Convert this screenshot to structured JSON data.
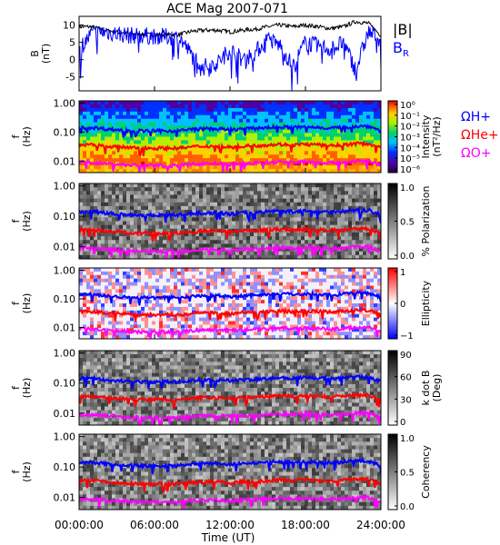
{
  "title": "ACE Mag 2007-071",
  "colors": {
    "black_line": "#000000",
    "blue": "#0000ff",
    "red": "#ff0000",
    "magenta": "#ff00ff"
  },
  "chart_data": [
    {
      "type": "line",
      "panel": "magnetic-field",
      "ylabel_lines": [
        "B",
        "(nT)"
      ],
      "yticks": [
        "10",
        "5",
        "0",
        "-5"
      ],
      "ylim": [
        -9,
        12.5
      ],
      "xlim": [
        0,
        24
      ],
      "legend": [
        "|B|",
        "B_R"
      ],
      "legend_placement": "right",
      "series": [
        {
          "name": "|B|",
          "color": "#000000",
          "x": [
            0,
            1,
            2,
            3,
            4,
            5,
            6,
            7,
            8,
            9,
            10,
            11,
            12,
            13,
            14,
            15,
            16,
            17,
            18,
            19,
            20,
            21,
            22,
            23,
            24
          ],
          "values": [
            9.5,
            9.5,
            8.5,
            8,
            7.5,
            7.3,
            7.2,
            7.2,
            7.3,
            8.2,
            8.5,
            8.5,
            8,
            8.5,
            8.8,
            9.5,
            10,
            9.5,
            10,
            9.5,
            9,
            9.5,
            11,
            10.5,
            7
          ]
        },
        {
          "name": "B_R",
          "color": "#0000ff",
          "x": [
            0,
            1,
            2,
            3,
            4,
            5,
            6,
            7,
            8,
            9,
            10,
            11,
            12,
            13,
            14,
            15,
            16,
            17,
            18,
            19,
            20,
            21,
            22,
            23,
            24
          ],
          "values": [
            3,
            7.5,
            8,
            7.5,
            7,
            6.9,
            6.8,
            6.6,
            6.3,
            1,
            -2,
            -1,
            3,
            0,
            2,
            6,
            4,
            -2,
            5,
            4,
            3,
            5,
            -3,
            8,
            6
          ]
        }
      ]
    },
    {
      "type": "heatmap",
      "panel": "power-spectrum",
      "ylabel_lines": [
        "f",
        "(Hz)"
      ],
      "yscale": "log",
      "ylim": [
        0.004,
        1.2
      ],
      "yticks": [
        "1.00",
        "0.10",
        "0.01"
      ],
      "colorbar_label_lines": [
        "Intensity",
        "(nT²/Hz)"
      ],
      "colorbar_ticks": [
        "10⁰",
        "10⁻¹",
        "10⁻²",
        "10⁻³",
        "10⁻⁴",
        "10⁻⁵",
        "10⁻⁶"
      ],
      "colorbar_scale": "rainbow",
      "overlay_labels": [
        {
          "text": "ΩH+",
          "color": "#0000ff"
        },
        {
          "text": "ΩHe+",
          "color": "#ff0000"
        },
        {
          "text": "ΩO+",
          "color": "#ff00ff"
        }
      ]
    },
    {
      "type": "heatmap",
      "panel": "polarization",
      "ylabel_lines": [
        "f",
        "(Hz)"
      ],
      "yscale": "log",
      "ylim": [
        0.004,
        1.2
      ],
      "yticks": [
        "1.00",
        "0.10",
        "0.01"
      ],
      "colorbar_label_lines": [
        "% Polarization"
      ],
      "colorbar_ticks": [
        "1.0",
        "0.5",
        "0.0"
      ],
      "colorbar_scale": "grayscale"
    },
    {
      "type": "heatmap",
      "panel": "ellipticity",
      "ylabel_lines": [
        "f",
        "(Hz)"
      ],
      "yscale": "log",
      "ylim": [
        0.004,
        1.2
      ],
      "yticks": [
        "1.00",
        "0.10",
        "0.01"
      ],
      "colorbar_label_lines": [
        "Ellipticity"
      ],
      "colorbar_ticks": [
        "1",
        "0",
        "−1"
      ],
      "colorbar_scale": "blue-white-red"
    },
    {
      "type": "heatmap",
      "panel": "k-dot-b",
      "ylabel_lines": [
        "f",
        "(Hz)"
      ],
      "yscale": "log",
      "ylim": [
        0.004,
        1.2
      ],
      "yticks": [
        "1.00",
        "0.10",
        "0.01"
      ],
      "colorbar_label_lines": [
        "k dot B",
        "(Deg)"
      ],
      "colorbar_ticks": [
        "90",
        "60",
        "30",
        "0"
      ],
      "colorbar_scale": "grayscale"
    },
    {
      "type": "heatmap",
      "panel": "coherency",
      "ylabel_lines": [
        "f",
        "(Hz)"
      ],
      "yscale": "log",
      "ylim": [
        0.004,
        1.2
      ],
      "yticks": [
        "1.00",
        "0.10",
        "0.01"
      ],
      "colorbar_label_lines": [
        "Coherency"
      ],
      "colorbar_ticks": [
        "1.0",
        "0.5",
        "0.0"
      ],
      "colorbar_scale": "grayscale"
    }
  ],
  "gyrofrequency_lines": [
    {
      "name": "ΩH+",
      "color": "#0000ff",
      "x": [
        0,
        1,
        2,
        3,
        4,
        5,
        6,
        7,
        8,
        9,
        10,
        11,
        12,
        13,
        14,
        15,
        16,
        17,
        18,
        19,
        20,
        21,
        22,
        23,
        24
      ],
      "values": [
        0.14,
        0.145,
        0.13,
        0.12,
        0.115,
        0.11,
        0.11,
        0.11,
        0.112,
        0.125,
        0.13,
        0.13,
        0.12,
        0.13,
        0.135,
        0.145,
        0.15,
        0.145,
        0.15,
        0.145,
        0.14,
        0.145,
        0.16,
        0.16,
        0.11
      ]
    },
    {
      "name": "ΩHe+",
      "color": "#ff0000",
      "x": [
        0,
        1,
        2,
        3,
        4,
        5,
        6,
        7,
        8,
        9,
        10,
        11,
        12,
        13,
        14,
        15,
        16,
        17,
        18,
        19,
        20,
        21,
        22,
        23,
        24
      ],
      "values": [
        0.036,
        0.036,
        0.033,
        0.031,
        0.029,
        0.028,
        0.028,
        0.028,
        0.028,
        0.031,
        0.033,
        0.033,
        0.03,
        0.033,
        0.034,
        0.036,
        0.038,
        0.036,
        0.038,
        0.036,
        0.035,
        0.036,
        0.04,
        0.04,
        0.028
      ]
    },
    {
      "name": "ΩO+",
      "color": "#ff00ff",
      "x": [
        0,
        1,
        2,
        3,
        4,
        5,
        6,
        7,
        8,
        9,
        10,
        11,
        12,
        13,
        14,
        15,
        16,
        17,
        18,
        19,
        20,
        21,
        22,
        23,
        24
      ],
      "values": [
        0.009,
        0.009,
        0.0083,
        0.0077,
        0.0073,
        0.007,
        0.007,
        0.007,
        0.007,
        0.0078,
        0.0082,
        0.0082,
        0.0076,
        0.0082,
        0.0085,
        0.009,
        0.0095,
        0.009,
        0.0095,
        0.009,
        0.0088,
        0.009,
        0.01,
        0.01,
        0.007
      ]
    }
  ],
  "xaxis": {
    "ticks": [
      "00:00:00",
      "06:00:00",
      "12:00:00",
      "18:00:00",
      "24:00:00"
    ],
    "tick_values": [
      0,
      6,
      12,
      18,
      24
    ],
    "label": "Time (UT)"
  },
  "legend_B": {
    "b": "|B|",
    "br": "B",
    "br_sub": "R"
  }
}
